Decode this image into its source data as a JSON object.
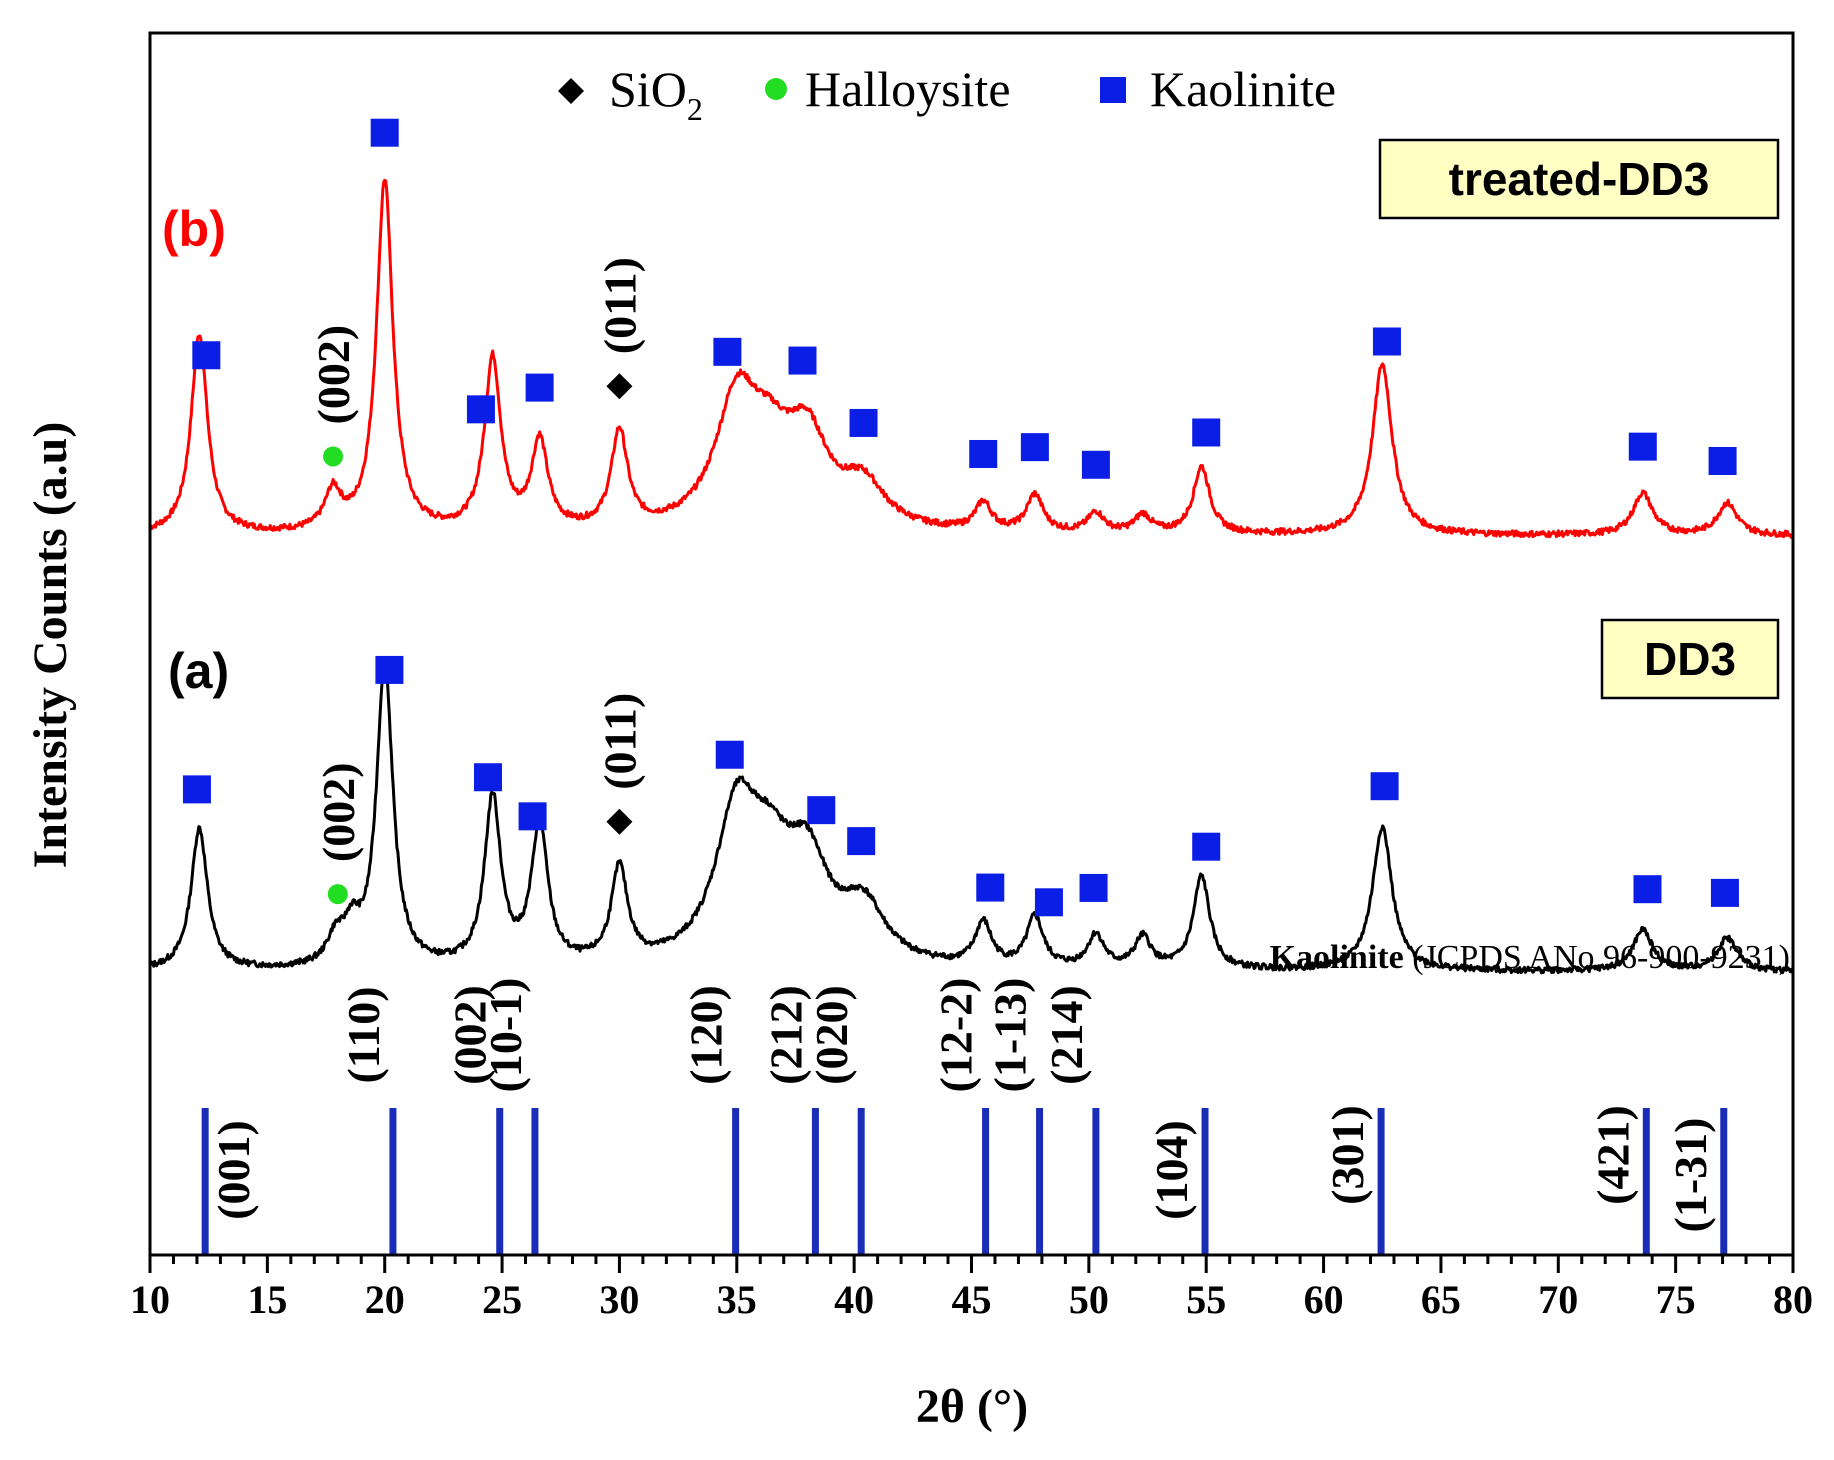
{
  "chart_data": {
    "type": "line",
    "xlabel": "2θ (°)",
    "ylabel": "Intensity Counts (a.u)",
    "xlim": [
      10,
      80
    ],
    "xticks": [
      "10",
      "15",
      "20",
      "25",
      "30",
      "35",
      "40",
      "45",
      "50",
      "55",
      "60",
      "65",
      "70",
      "75",
      "80"
    ],
    "legend": {
      "placement": "top-center",
      "entries": [
        {
          "marker": "diamond",
          "color": "#000000",
          "label": "SiO",
          "sub": "2"
        },
        {
          "marker": "circle",
          "color": "#22dd22",
          "label": "Halloysite"
        },
        {
          "marker": "square",
          "color": "#0a1ee6",
          "label": "Kaolinite"
        }
      ]
    },
    "series": [
      {
        "name": "treated-DD3",
        "tag": "(b)",
        "color": "#ff0000",
        "peaks": [
          [
            12.1,
            200
          ],
          [
            17.8,
            38
          ],
          [
            20.0,
            352
          ],
          [
            24.6,
            172
          ],
          [
            26.6,
            88
          ],
          [
            30.0,
            97
          ],
          [
            35.0,
            125
          ],
          [
            36.4,
            60
          ],
          [
            38.0,
            85
          ],
          [
            40.4,
            42
          ],
          [
            45.5,
            28
          ],
          [
            47.7,
            37
          ],
          [
            50.3,
            20
          ],
          [
            52.3,
            18
          ],
          [
            54.8,
            67
          ],
          [
            62.5,
            171
          ],
          [
            73.6,
            42
          ],
          [
            77.2,
            32
          ]
        ],
        "markers": [
          {
            "x": 12.4,
            "shape": "square",
            "miller": ""
          },
          {
            "x": 17.8,
            "shape": "circle",
            "miller": "(002)"
          },
          {
            "x": 20.0,
            "shape": "square",
            "miller": ""
          },
          {
            "x": 24.1,
            "shape": "square",
            "miller": ""
          },
          {
            "x": 26.6,
            "shape": "square",
            "miller": ""
          },
          {
            "x": 30.0,
            "shape": "diamond",
            "miller": "(011)"
          },
          {
            "x": 34.6,
            "shape": "square",
            "miller": ""
          },
          {
            "x": 37.8,
            "shape": "square",
            "miller": ""
          },
          {
            "x": 40.4,
            "shape": "square",
            "miller": ""
          },
          {
            "x": 45.5,
            "shape": "square",
            "miller": ""
          },
          {
            "x": 47.7,
            "shape": "square",
            "miller": ""
          },
          {
            "x": 50.3,
            "shape": "square",
            "miller": ""
          },
          {
            "x": 55.0,
            "shape": "square",
            "miller": ""
          },
          {
            "x": 62.7,
            "shape": "square",
            "miller": ""
          },
          {
            "x": 73.6,
            "shape": "square",
            "miller": ""
          },
          {
            "x": 77.0,
            "shape": "square",
            "miller": ""
          }
        ]
      },
      {
        "name": "DD3",
        "tag": "(a)",
        "color": "#000000",
        "peaks": [
          [
            12.1,
            142
          ],
          [
            17.9,
            26
          ],
          [
            18.6,
            34
          ],
          [
            20.0,
            305
          ],
          [
            24.6,
            168
          ],
          [
            26.6,
            140
          ],
          [
            30.0,
            95
          ],
          [
            35.0,
            145
          ],
          [
            36.4,
            78
          ],
          [
            38.0,
            93
          ],
          [
            40.4,
            55
          ],
          [
            45.5,
            43
          ],
          [
            47.7,
            50
          ],
          [
            50.3,
            33
          ],
          [
            52.3,
            31
          ],
          [
            54.8,
            93
          ],
          [
            62.5,
            144
          ],
          [
            73.6,
            41
          ],
          [
            77.2,
            33
          ]
        ],
        "markers": [
          {
            "x": 12.0,
            "shape": "square",
            "miller": ""
          },
          {
            "x": 18.0,
            "shape": "circle",
            "miller": "(002)"
          },
          {
            "x": 20.2,
            "shape": "square",
            "miller": ""
          },
          {
            "x": 24.4,
            "shape": "square",
            "miller": ""
          },
          {
            "x": 26.3,
            "shape": "square",
            "miller": ""
          },
          {
            "x": 30.0,
            "shape": "diamond",
            "miller": "(011)"
          },
          {
            "x": 34.7,
            "shape": "square",
            "miller": ""
          },
          {
            "x": 38.6,
            "shape": "square",
            "miller": ""
          },
          {
            "x": 40.3,
            "shape": "square",
            "miller": ""
          },
          {
            "x": 45.8,
            "shape": "square",
            "miller": ""
          },
          {
            "x": 48.3,
            "shape": "square",
            "miller": ""
          },
          {
            "x": 50.2,
            "shape": "square",
            "miller": ""
          },
          {
            "x": 55.0,
            "shape": "square",
            "miller": ""
          },
          {
            "x": 62.6,
            "shape": "square",
            "miller": ""
          },
          {
            "x": 73.8,
            "shape": "square",
            "miller": ""
          },
          {
            "x": 77.1,
            "shape": "square",
            "miller": ""
          }
        ]
      }
    ],
    "reference": {
      "label_bold": "Kaolinite",
      "label_rest": " (JCPDS ANo.96-900-9231)",
      "color": "#1a2db8",
      "lines": [
        {
          "x": 12.35,
          "hkl": "(001)"
        },
        {
          "x": 20.35,
          "hkl": "(110)"
        },
        {
          "x": 24.9,
          "hkl": "(002)"
        },
        {
          "x": 26.4,
          "hkl": "(10-1)"
        },
        {
          "x": 34.95,
          "hkl": "(120)"
        },
        {
          "x": 38.35,
          "hkl": "(212)"
        },
        {
          "x": 40.3,
          "hkl": "(020)"
        },
        {
          "x": 45.6,
          "hkl": "(12-2)"
        },
        {
          "x": 47.9,
          "hkl": "(1-13)"
        },
        {
          "x": 50.3,
          "hkl": "(214)"
        },
        {
          "x": 54.95,
          "hkl": "(104)"
        },
        {
          "x": 62.45,
          "hkl": "(301)"
        },
        {
          "x": 73.75,
          "hkl": "(421)"
        },
        {
          "x": 77.05,
          "hkl": "(1-31)"
        }
      ]
    }
  }
}
